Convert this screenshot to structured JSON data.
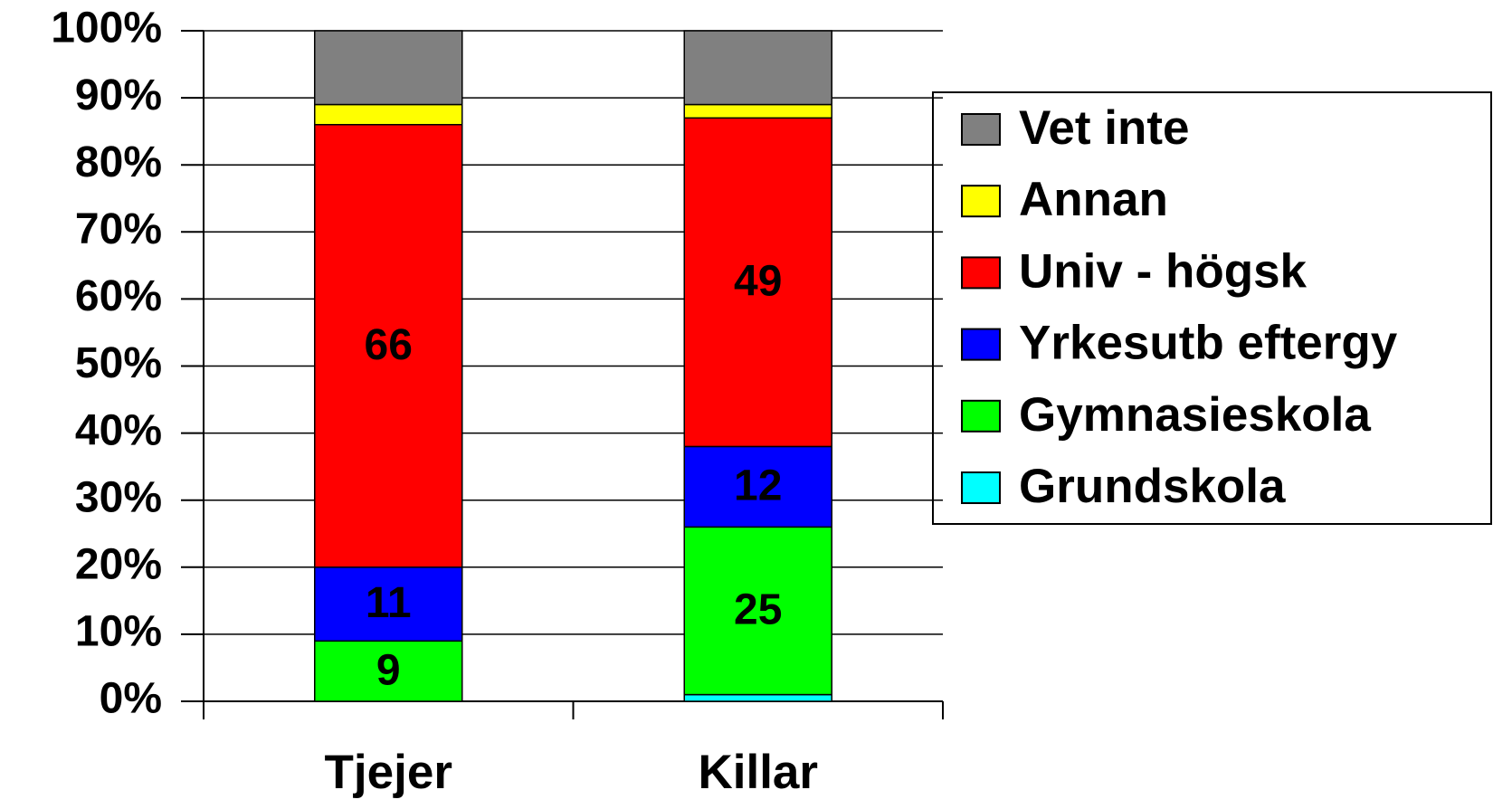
{
  "chart_data": {
    "type": "stacked_bar",
    "categories": [
      "Tjejer",
      "Killar"
    ],
    "series": [
      {
        "name": "Grundskola",
        "color": "#00ffff",
        "values": [
          0,
          1
        ],
        "value_labels": [
          null,
          null
        ],
        "label_color": "#000000"
      },
      {
        "name": "Gymnasieskola",
        "color": "#00ff00",
        "values": [
          9,
          25
        ],
        "value_labels": [
          "9",
          "25"
        ],
        "label_color": "#000000"
      },
      {
        "name": "Yrkesutb eftergy",
        "color": "#0000ff",
        "values": [
          11,
          12
        ],
        "value_labels": [
          "11",
          "12"
        ],
        "label_color": "#ffffff"
      },
      {
        "name": "Univ - högsk",
        "color": "#ff0000",
        "values": [
          66,
          49
        ],
        "value_labels": [
          "66",
          "49"
        ],
        "label_color": "#ffffff"
      },
      {
        "name": "Annan",
        "color": "#ffff00",
        "values": [
          3,
          2
        ],
        "value_labels": [
          null,
          null
        ],
        "label_color": "#000000"
      },
      {
        "name": "Vet inte",
        "color": "#808080",
        "values": [
          11,
          11
        ],
        "value_labels": [
          null,
          null
        ],
        "label_color": "#000000"
      }
    ],
    "ylim": [
      0,
      100
    ],
    "yticks": [
      {
        "value": 0,
        "label": "0%"
      },
      {
        "value": 10,
        "label": "10%"
      },
      {
        "value": 20,
        "label": "20%"
      },
      {
        "value": 30,
        "label": "30%"
      },
      {
        "value": 40,
        "label": "40%"
      },
      {
        "value": 50,
        "label": "50%"
      },
      {
        "value": 60,
        "label": "60%"
      },
      {
        "value": 70,
        "label": "70%"
      },
      {
        "value": 80,
        "label": "80%"
      },
      {
        "value": 90,
        "label": "90%"
      },
      {
        "value": 100,
        "label": "100%"
      }
    ],
    "grid": true,
    "legend": "right"
  }
}
